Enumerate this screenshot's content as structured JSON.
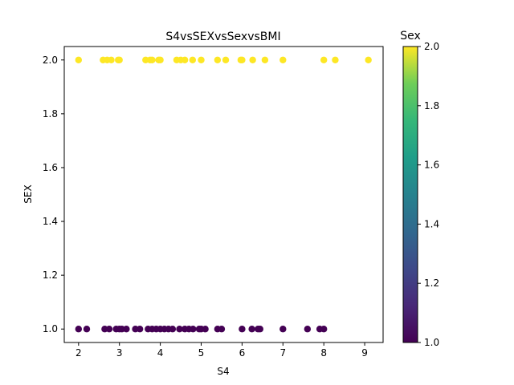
{
  "chart_data": {
    "type": "scatter",
    "title": "S4vsSEXvsSexvsBMI",
    "xlabel": "S4",
    "ylabel": "SEX",
    "xlim": [
      1.65,
      9.45
    ],
    "ylim": [
      0.95,
      2.05
    ],
    "xticks": [
      "2",
      "3",
      "4",
      "5",
      "6",
      "7",
      "8",
      "9"
    ],
    "yticks": [
      "1.0",
      "1.2",
      "1.4",
      "1.6",
      "1.8",
      "2.0"
    ],
    "grid": false,
    "colormap": "viridis",
    "colorbar": {
      "label": "Sex",
      "range": [
        1.0,
        2.0
      ],
      "ticks": [
        "1.0",
        "1.2",
        "1.4",
        "1.6",
        "1.8",
        "2.0"
      ]
    },
    "points": [
      {
        "x": 2.0,
        "y": 2.0
      },
      {
        "x": 2.6,
        "y": 2.0
      },
      {
        "x": 2.7,
        "y": 2.0
      },
      {
        "x": 2.8,
        "y": 2.0
      },
      {
        "x": 2.97,
        "y": 2.0
      },
      {
        "x": 3.0,
        "y": 2.0
      },
      {
        "x": 3.64,
        "y": 2.0
      },
      {
        "x": 3.75,
        "y": 2.0
      },
      {
        "x": 3.8,
        "y": 2.0
      },
      {
        "x": 3.96,
        "y": 2.0
      },
      {
        "x": 4.0,
        "y": 2.0
      },
      {
        "x": 4.4,
        "y": 2.0
      },
      {
        "x": 4.5,
        "y": 2.0
      },
      {
        "x": 4.6,
        "y": 2.0
      },
      {
        "x": 4.79,
        "y": 2.0
      },
      {
        "x": 5.0,
        "y": 2.0
      },
      {
        "x": 5.4,
        "y": 2.0
      },
      {
        "x": 5.6,
        "y": 2.0
      },
      {
        "x": 5.97,
        "y": 2.0
      },
      {
        "x": 6.0,
        "y": 2.0
      },
      {
        "x": 6.26,
        "y": 2.0
      },
      {
        "x": 6.56,
        "y": 2.0
      },
      {
        "x": 7.0,
        "y": 2.0
      },
      {
        "x": 8.0,
        "y": 2.0
      },
      {
        "x": 8.28,
        "y": 2.0
      },
      {
        "x": 9.09,
        "y": 2.0
      },
      {
        "x": 2.0,
        "y": 1.0
      },
      {
        "x": 2.2,
        "y": 1.0
      },
      {
        "x": 2.64,
        "y": 1.0
      },
      {
        "x": 2.75,
        "y": 1.0
      },
      {
        "x": 2.92,
        "y": 1.0
      },
      {
        "x": 3.0,
        "y": 1.0
      },
      {
        "x": 3.06,
        "y": 1.0
      },
      {
        "x": 3.17,
        "y": 1.0
      },
      {
        "x": 3.39,
        "y": 1.0
      },
      {
        "x": 3.5,
        "y": 1.0
      },
      {
        "x": 3.7,
        "y": 1.0
      },
      {
        "x": 3.8,
        "y": 1.0
      },
      {
        "x": 3.9,
        "y": 1.0
      },
      {
        "x": 4.0,
        "y": 1.0
      },
      {
        "x": 4.1,
        "y": 1.0
      },
      {
        "x": 4.2,
        "y": 1.0
      },
      {
        "x": 4.3,
        "y": 1.0
      },
      {
        "x": 4.47,
        "y": 1.0
      },
      {
        "x": 4.6,
        "y": 1.0
      },
      {
        "x": 4.7,
        "y": 1.0
      },
      {
        "x": 4.8,
        "y": 1.0
      },
      {
        "x": 4.95,
        "y": 1.0
      },
      {
        "x": 5.0,
        "y": 1.0
      },
      {
        "x": 5.1,
        "y": 1.0
      },
      {
        "x": 5.4,
        "y": 1.0
      },
      {
        "x": 5.5,
        "y": 1.0
      },
      {
        "x": 6.0,
        "y": 1.0
      },
      {
        "x": 6.24,
        "y": 1.0
      },
      {
        "x": 6.39,
        "y": 1.0
      },
      {
        "x": 6.44,
        "y": 1.0
      },
      {
        "x": 7.0,
        "y": 1.0
      },
      {
        "x": 7.6,
        "y": 1.0
      },
      {
        "x": 7.9,
        "y": 1.0
      },
      {
        "x": 8.0,
        "y": 1.0
      }
    ]
  }
}
